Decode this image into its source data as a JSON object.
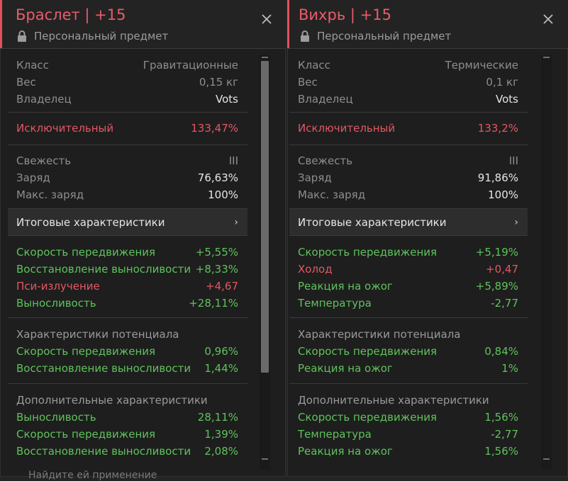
{
  "left": {
    "title": "Браслет | +15",
    "subtitle": "Персональный предмет",
    "info": [
      {
        "label": "Класс",
        "value": "Гравитационные"
      },
      {
        "label": "Вес",
        "value": "0,15 кг"
      },
      {
        "label": "Владелец",
        "value": "Vots"
      }
    ],
    "excl": {
      "label": "Исключительный",
      "value": "133,47%"
    },
    "state": [
      {
        "label": "Свежесть",
        "value": "III"
      },
      {
        "label": "Заряд",
        "value": "76,63%"
      },
      {
        "label": "Макс. заряд",
        "value": "100%"
      }
    ],
    "final_header": "Итоговые характеристики",
    "final": [
      {
        "label": "Скорость передвижения",
        "value": "+5,55%",
        "color": "green"
      },
      {
        "label": "Восстановление выносливости",
        "value": "+8,33%",
        "color": "green"
      },
      {
        "label": "Пси-излучение",
        "value": "+4,67",
        "color": "red"
      },
      {
        "label": "Выносливость",
        "value": "+28,11%",
        "color": "green"
      }
    ],
    "potential_title": "Характеристики потенциала",
    "potential": [
      {
        "label": "Скорость передвижения",
        "value": "0,96%"
      },
      {
        "label": "Восстановление выносливости",
        "value": "1,44%"
      }
    ],
    "extra_title": "Дополнительные характеристики",
    "extra": [
      {
        "label": "Выносливость",
        "value": "28,11%"
      },
      {
        "label": "Скорость передвижения",
        "value": "1,39%"
      },
      {
        "label": "Восстановление выносливости",
        "value": "2,08%"
      }
    ]
  },
  "right": {
    "title": "Вихрь | +15",
    "subtitle": "Персональный предмет",
    "info": [
      {
        "label": "Класс",
        "value": "Термические"
      },
      {
        "label": "Вес",
        "value": "0,1 кг"
      },
      {
        "label": "Владелец",
        "value": "Vots"
      }
    ],
    "excl": {
      "label": "Исключительный",
      "value": "133,2%"
    },
    "state": [
      {
        "label": "Свежесть",
        "value": "III"
      },
      {
        "label": "Заряд",
        "value": "91,86%"
      },
      {
        "label": "Макс. заряд",
        "value": "100%"
      }
    ],
    "final_header": "Итоговые характеристики",
    "final": [
      {
        "label": "Скорость передвижения",
        "value": "+5,19%",
        "color": "green"
      },
      {
        "label": "Холод",
        "value": "+0,47",
        "color": "red"
      },
      {
        "label": "Реакция на ожог",
        "value": "+5,89%",
        "color": "green"
      },
      {
        "label": "Температура",
        "value": "-2,77",
        "color": "green"
      }
    ],
    "potential_title": "Характеристики потенциала",
    "potential": [
      {
        "label": "Скорость передвижения",
        "value": "0,84%"
      },
      {
        "label": "Реакция на ожог",
        "value": "1%"
      }
    ],
    "extra_title": "Дополнительные характеристики",
    "extra": [
      {
        "label": "Скорость передвижения",
        "value": "1,56%"
      },
      {
        "label": "Температура",
        "value": "-2,77"
      },
      {
        "label": "Реакция на ожог",
        "value": "1,56%"
      }
    ]
  },
  "below_text": "Найдите ей применение",
  "colors": {
    "accent": "#e2505c",
    "title": "#ea5c69",
    "green": "#5fc25c",
    "red": "#e35763"
  }
}
